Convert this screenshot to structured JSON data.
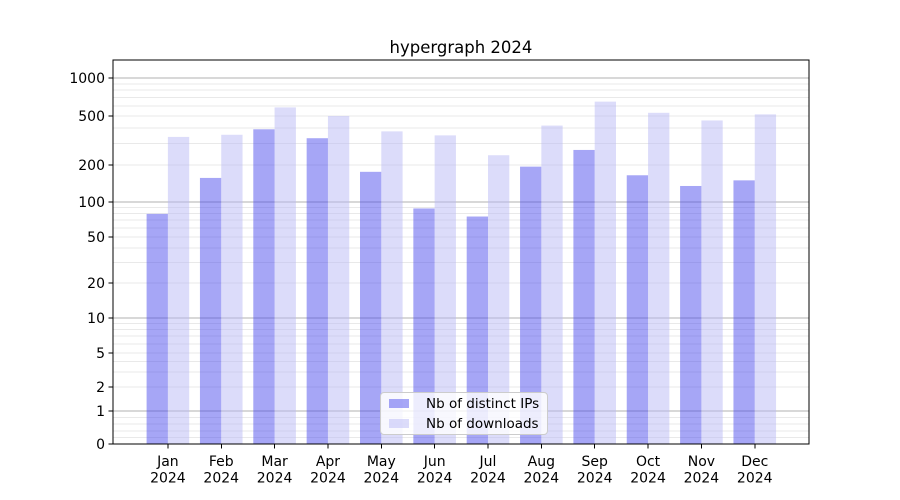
{
  "chart_data": {
    "type": "bar",
    "title": "hypergraph 2024",
    "categories": [
      "Jan",
      "Feb",
      "Mar",
      "Apr",
      "May",
      "Jun",
      "Jul",
      "Aug",
      "Sep",
      "Oct",
      "Nov",
      "Dec"
    ],
    "year_label": "2024",
    "series": [
      {
        "name": "Nb of distinct IPs",
        "color": "rgba(77,77,237,0.5)",
        "values": [
          79,
          157,
          390,
          330,
          176,
          88,
          75,
          194,
          265,
          165,
          135,
          150
        ]
      },
      {
        "name": "Nb of downloads",
        "color": "rgba(185,185,245,0.5)",
        "values": [
          338,
          352,
          585,
          500,
          375,
          348,
          240,
          418,
          650,
          530,
          460,
          515
        ]
      }
    ],
    "yscale": "symlog",
    "yticks": [
      0,
      1,
      2,
      5,
      10,
      20,
      50,
      100,
      200,
      500,
      1000
    ],
    "xlabel": "",
    "ylabel": "",
    "grid": true,
    "legend_position": "lower center",
    "colors": {
      "major_grid": "#b0b0b0",
      "minor_grid": "#e9e9e9",
      "spine": "#000000",
      "tick_label": "#000000",
      "legend_border": "#cccccc",
      "legend_background": "rgba(255,255,255,0.8)"
    }
  }
}
